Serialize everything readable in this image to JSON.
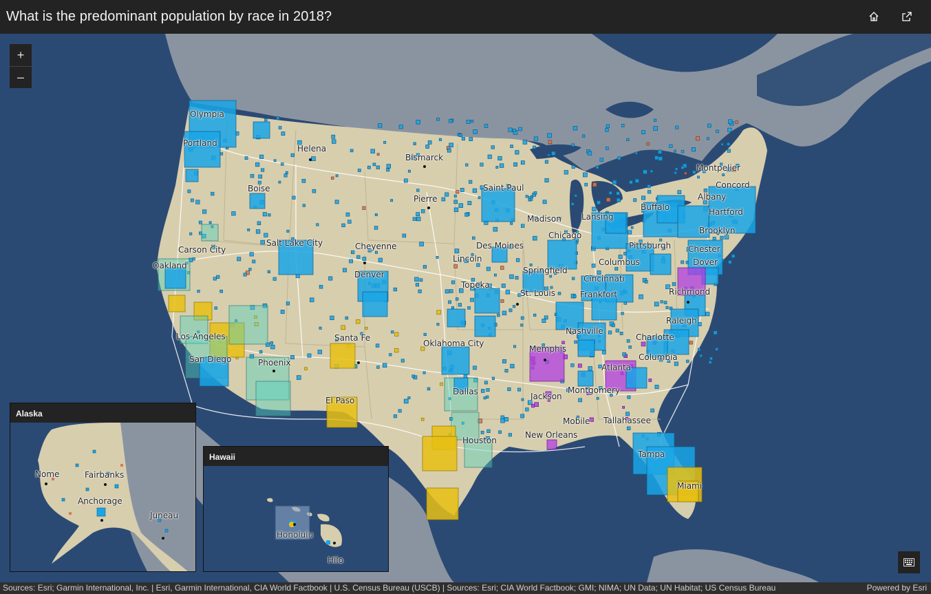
{
  "header": {
    "title": "What is the predominant population by race in 2018?",
    "home_icon": "home-icon",
    "share_icon": "share-icon"
  },
  "zoom": {
    "in_label": "+",
    "out_label": "–"
  },
  "colors": {
    "ocean": "#2b4a73",
    "land_us": "#d7ceae",
    "land_other": "#8a94a1",
    "white_pop": "#1aa5e6",
    "black_pop": "#b23ee0",
    "hispanic_pop": "#e8c013",
    "asian_pop": "#56d0bf"
  },
  "cities": [
    "Olympia",
    "Portland",
    "Helena",
    "Bismarck",
    "Montpelier",
    "Concord",
    "Albany",
    "Boise",
    "Saint Paul",
    "Pierre",
    "Buffalo",
    "Hartford",
    "Madison",
    "Lansing",
    "Brooklyn",
    "Chicago",
    "Pittsburgh",
    "Chester",
    "Carson City",
    "Salt Lake City",
    "Cheyenne",
    "Des Moines",
    "Dover",
    "Oakland",
    "Lincoln",
    "Columbus",
    "Denver",
    "Springfield",
    "Cincinnati",
    "Topeka",
    "Richmond",
    "St. Louis",
    "Frankfort",
    "Raleigh",
    "Nashville",
    "Charlotte",
    "Los Angeles",
    "Santa Fe",
    "Memphis",
    "Oklahoma City",
    "San Diego",
    "Phoenix",
    "Columbia",
    "Atlanta",
    "Dallas",
    "Montgomery",
    "Jackson",
    "El Paso",
    "Tallahassee",
    "Mobile",
    "Houston",
    "New Orleans",
    "Tampa",
    "Miami"
  ],
  "insets": {
    "alaska": {
      "title": "Alaska",
      "cities": [
        "Nome",
        "Fairbanks",
        "Anchorage",
        "Juneau"
      ]
    },
    "hawaii": {
      "title": "Hawaii",
      "cities": [
        "Honolulu",
        "Hilo"
      ]
    }
  },
  "keyboard_icon": "keyboard-icon",
  "attribution": {
    "text": "Sources: Esri; Garmin International, Inc. | Esri, Garmin International, CIA World Factbook | U.S. Census Bureau (USCB) | Sources: Esri; CIA World Factbook; GMI; NIMA; UN Data; UN Habitat; US Census Bureau",
    "powered": "Powered by Esri"
  }
}
